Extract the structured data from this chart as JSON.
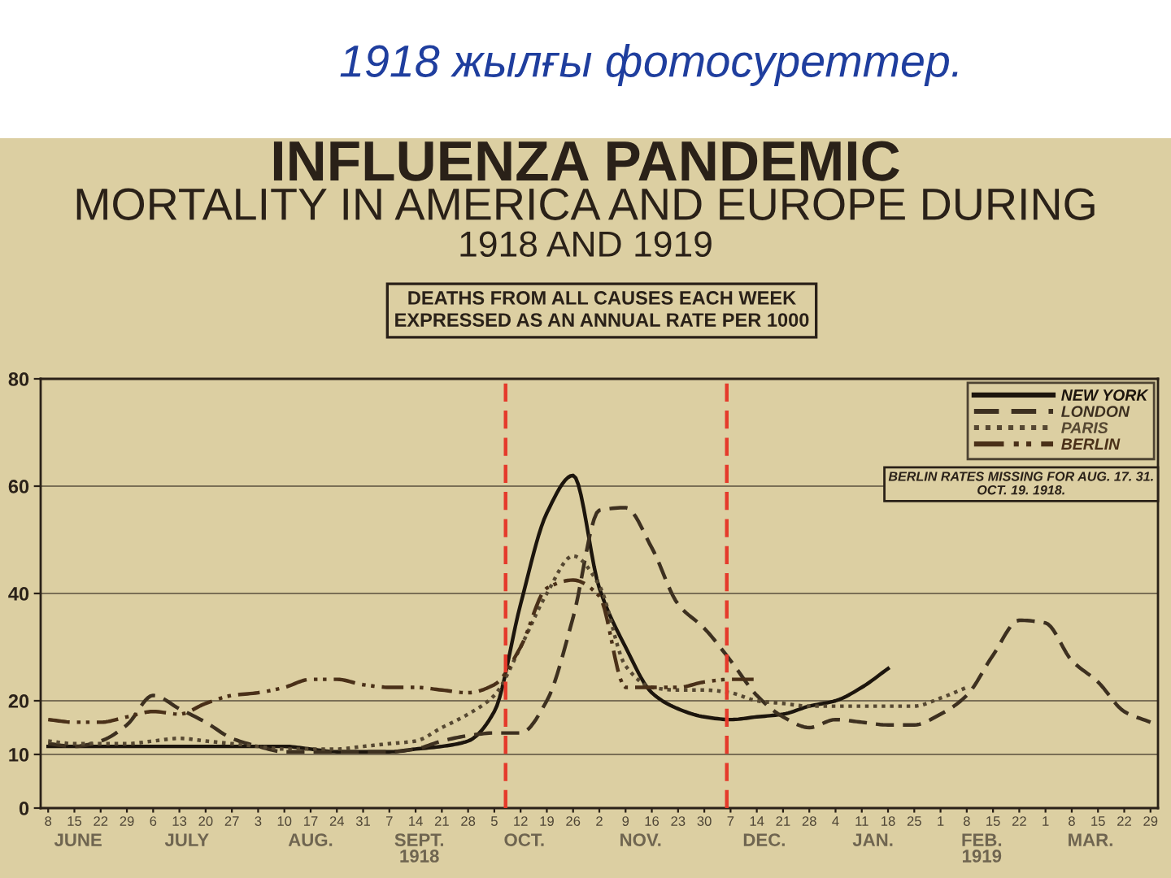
{
  "chart_data": {
    "type": "line",
    "title": "1918 жылғы фотосуреттер.",
    "subtitle": "INFLUENZA PANDEMIC\nMORTALITY IN AMERICA AND EUROPE DURING\n1918 AND 1919",
    "annotations": [
      "DEATHS FROM ALL CAUSES EACH WEEK\nEXPRESSED AS AN ANNUAL RATE PER 1000",
      "BERLIN RATES MISSING FOR AUG. 17. 31.\nOCT. 19. 1918."
    ],
    "x": [
      "1918-06-08",
      "1918-06-15",
      "1918-06-22",
      "1918-06-29",
      "1918-07-06",
      "1918-07-13",
      "1918-07-20",
      "1918-07-27",
      "1918-08-03",
      "1918-08-10",
      "1918-08-17",
      "1918-08-24",
      "1918-08-31",
      "1918-09-07",
      "1918-09-14",
      "1918-09-21",
      "1918-09-28",
      "1918-10-05",
      "1918-10-12",
      "1918-10-19",
      "1918-10-26",
      "1918-11-02",
      "1918-11-09",
      "1918-11-16",
      "1918-11-23",
      "1918-11-30",
      "1918-12-07",
      "1918-12-14",
      "1918-12-21",
      "1918-12-28",
      "1919-01-04",
      "1919-01-11",
      "1919-01-18",
      "1919-01-25",
      "1919-02-01",
      "1919-02-08",
      "1919-02-15",
      "1919-02-22",
      "1919-03-01",
      "1919-03-08",
      "1919-03-15",
      "1919-03-22",
      "1919-03-29"
    ],
    "series": [
      {
        "name": "NEW YORK",
        "color": "#1c150d",
        "line_style": "solid",
        "values": [
          11.5,
          11.5,
          11.5,
          11.5,
          11.5,
          11.5,
          11.5,
          11.5,
          11.5,
          11.5,
          11,
          10.5,
          10.5,
          10.5,
          11,
          11.5,
          12.5,
          18,
          38,
          55,
          62,
          41,
          30,
          21.5,
          18.5,
          17,
          16.5,
          17,
          17.5,
          19,
          20,
          22.5,
          26,
          null,
          null,
          null,
          null,
          null,
          null,
          null,
          null,
          null,
          null
        ]
      },
      {
        "name": "LONDON",
        "color": "#3d3020",
        "line_style": "dashed",
        "values": [
          12,
          11.5,
          12.5,
          15.5,
          21,
          18.5,
          16,
          13,
          11.5,
          10.5,
          10.5,
          10.5,
          10.5,
          10.5,
          11,
          12.5,
          13.5,
          14,
          14,
          20,
          35.5,
          55.5,
          56,
          48.5,
          38,
          33.5,
          27.5,
          21,
          17,
          15,
          16.5,
          16,
          15.5,
          15.5,
          17.5,
          21,
          28.5,
          35,
          34.5,
          27.5,
          23.5,
          18,
          16
        ]
      },
      {
        "name": "PARIS",
        "color": "#564832",
        "line_style": "dotted",
        "values": [
          12.5,
          12,
          12,
          12,
          12.5,
          13,
          12.5,
          12,
          11.5,
          11,
          11,
          11,
          11.5,
          12,
          12.5,
          15,
          17.5,
          21,
          30,
          40,
          47,
          41.5,
          26.5,
          22.5,
          22,
          22,
          21.5,
          20,
          19.5,
          19,
          19,
          19,
          19,
          19,
          20.5,
          22.5,
          null,
          null,
          null,
          null,
          null,
          null,
          null
        ]
      },
      {
        "name": "BERLIN",
        "color": "#4a3018",
        "line_style": "dashdot",
        "values": [
          16.5,
          16,
          16,
          17,
          18,
          17.5,
          19.5,
          21,
          21.5,
          22.5,
          24,
          24,
          23,
          22.5,
          22.5,
          22,
          21.5,
          23,
          30,
          41,
          42.5,
          39.5,
          22.5,
          22.5,
          22.5,
          23.5,
          24,
          24,
          null,
          null,
          null,
          null,
          null,
          null,
          null,
          null,
          null,
          null,
          null,
          null,
          null,
          null,
          null
        ]
      }
    ],
    "xlim": [
      "1918-06-06",
      "1919-03-31"
    ],
    "xticks": [
      {
        "value": "1918-06-08",
        "label": "8"
      },
      {
        "value": "1918-06-15",
        "label": "15"
      },
      {
        "value": "1918-06-22",
        "label": "22"
      },
      {
        "value": "1918-06-29",
        "label": "29"
      },
      {
        "value": "1918-07-06",
        "label": "6"
      },
      {
        "value": "1918-07-13",
        "label": "13"
      },
      {
        "value": "1918-07-20",
        "label": "20"
      },
      {
        "value": "1918-07-27",
        "label": "27"
      },
      {
        "value": "1918-08-03",
        "label": "3"
      },
      {
        "value": "1918-08-10",
        "label": "10"
      },
      {
        "value": "1918-08-17",
        "label": "17"
      },
      {
        "value": "1918-08-24",
        "label": "24"
      },
      {
        "value": "1918-08-31",
        "label": "31"
      },
      {
        "value": "1918-09-07",
        "label": "7"
      },
      {
        "value": "1918-09-14",
        "label": "14"
      },
      {
        "value": "1918-09-21",
        "label": "21"
      },
      {
        "value": "1918-09-28",
        "label": "28"
      },
      {
        "value": "1918-10-05",
        "label": "5"
      },
      {
        "value": "1918-10-12",
        "label": "12"
      },
      {
        "value": "1918-10-19",
        "label": "19"
      },
      {
        "value": "1918-10-26",
        "label": "26"
      },
      {
        "value": "1918-11-02",
        "label": "2"
      },
      {
        "value": "1918-11-09",
        "label": "9"
      },
      {
        "value": "1918-11-16",
        "label": "16"
      },
      {
        "value": "1918-11-23",
        "label": "23"
      },
      {
        "value": "1918-11-30",
        "label": "30"
      },
      {
        "value": "1918-12-07",
        "label": "7"
      },
      {
        "value": "1918-12-14",
        "label": "14"
      },
      {
        "value": "1918-12-21",
        "label": "21"
      },
      {
        "value": "1918-12-28",
        "label": "28"
      },
      {
        "value": "1919-01-04",
        "label": "4"
      },
      {
        "value": "1919-01-11",
        "label": "11"
      },
      {
        "value": "1919-01-18",
        "label": "18"
      },
      {
        "value": "1919-01-25",
        "label": "25"
      },
      {
        "value": "1919-02-01",
        "label": "1"
      },
      {
        "value": "1919-02-08",
        "label": "8"
      },
      {
        "value": "1919-02-15",
        "label": "15"
      },
      {
        "value": "1919-02-22",
        "label": "22"
      },
      {
        "value": "1919-03-01",
        "label": "1"
      },
      {
        "value": "1919-03-08",
        "label": "8"
      },
      {
        "value": "1919-03-15",
        "label": "15"
      },
      {
        "value": "1919-03-22",
        "label": "22"
      },
      {
        "value": "1919-03-29",
        "label": "29"
      }
    ],
    "x2lim": [
      "1918-06-06",
      "1919-03-31"
    ],
    "x2ticks": [
      {
        "value": "1918-06-16",
        "label": "JUNE"
      },
      {
        "value": "1918-07-15",
        "label": "JULY"
      },
      {
        "value": "1918-08-17",
        "label": "AUG."
      },
      {
        "value": "1918-09-15",
        "label": "SEPT.\n1918"
      },
      {
        "value": "1918-10-13",
        "label": "OCT."
      },
      {
        "value": "1918-11-13",
        "label": "NOV."
      },
      {
        "value": "1918-12-16",
        "label": "DEC."
      },
      {
        "value": "1919-01-14",
        "label": "JAN."
      },
      {
        "value": "1919-02-12",
        "label": "FEB.\n1919"
      },
      {
        "value": "1919-03-13",
        "label": "MAR."
      }
    ],
    "ylim": [
      0,
      80
    ],
    "yticks": [
      0,
      10,
      20,
      40,
      60,
      80
    ],
    "ref_lines": [
      {
        "axis": "x",
        "value": "1918-10-08",
        "color": "#e53a2b",
        "line_style": "dashed"
      },
      {
        "axis": "x",
        "value": "1918-12-06",
        "color": "#e53a2b",
        "line_style": "dashed"
      }
    ],
    "grid": "y",
    "legend": "top right"
  }
}
